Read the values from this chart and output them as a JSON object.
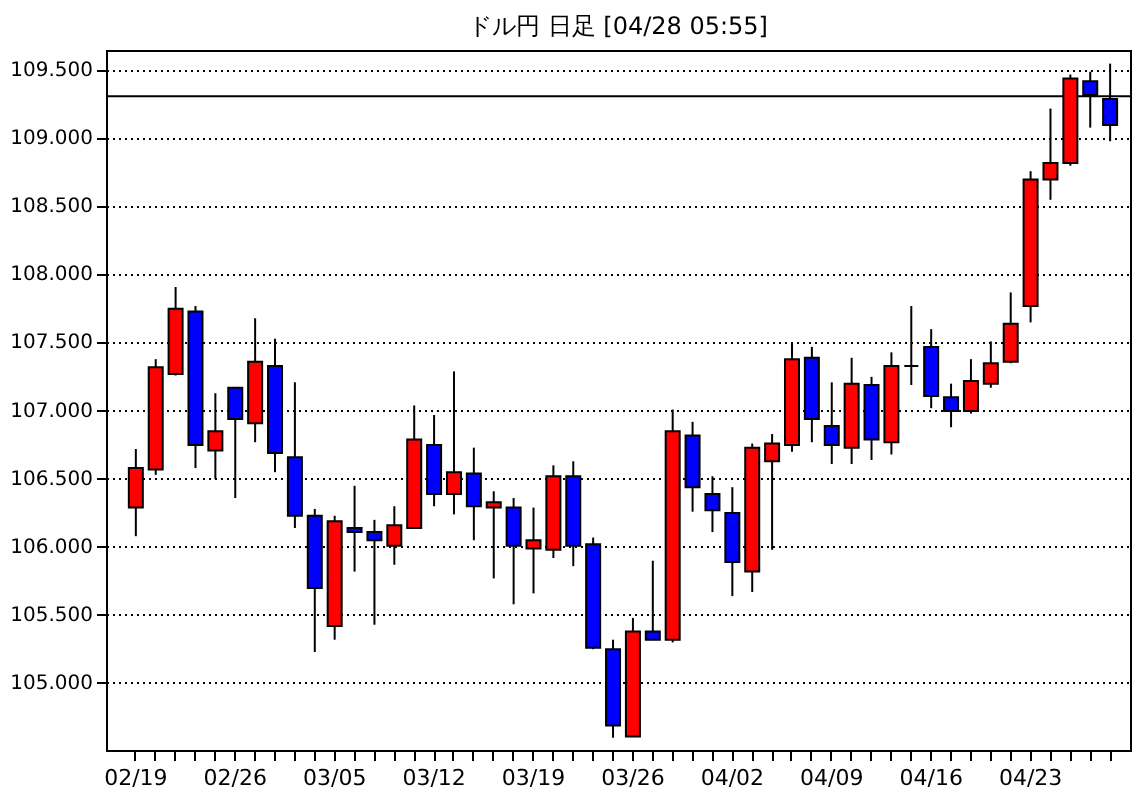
{
  "chart_data": {
    "type": "candlestick",
    "title": "ドル円 日足 [04/28 05:55]",
    "categories": [
      "02/19",
      null,
      null,
      null,
      null,
      "02/26",
      null,
      null,
      null,
      null,
      "03/05",
      null,
      null,
      null,
      null,
      "03/12",
      null,
      null,
      null,
      null,
      "03/19",
      null,
      null,
      null,
      null,
      "03/26",
      null,
      null,
      null,
      null,
      "04/02",
      null,
      null,
      null,
      null,
      "04/09",
      null,
      null,
      null,
      null,
      "04/16",
      null,
      null,
      null,
      null,
      "04/23",
      null,
      null,
      null,
      null
    ],
    "ohlc": [
      [
        106.28,
        106.71,
        106.07,
        106.57
      ],
      [
        106.56,
        107.37,
        106.52,
        107.31
      ],
      [
        107.26,
        107.9,
        107.25,
        107.74
      ],
      [
        107.72,
        107.76,
        106.57,
        106.74
      ],
      [
        106.7,
        107.12,
        106.49,
        106.84
      ],
      [
        107.16,
        107.16,
        106.35,
        106.93
      ],
      [
        106.9,
        107.67,
        106.76,
        107.35
      ],
      [
        107.32,
        107.52,
        106.54,
        106.68
      ],
      [
        106.65,
        107.2,
        106.13,
        106.22
      ],
      [
        106.22,
        106.27,
        105.22,
        105.69
      ],
      [
        105.41,
        106.22,
        105.31,
        106.18
      ],
      [
        106.13,
        106.44,
        105.81,
        106.1
      ],
      [
        106.1,
        106.19,
        105.42,
        106.04
      ],
      [
        106.0,
        106.29,
        105.86,
        106.15
      ],
      [
        106.13,
        107.03,
        106.13,
        106.78
      ],
      [
        106.74,
        106.96,
        106.29,
        106.38
      ],
      [
        106.38,
        107.28,
        106.23,
        106.54
      ],
      [
        106.53,
        106.72,
        106.04,
        106.29
      ],
      [
        106.28,
        106.4,
        105.76,
        106.32
      ],
      [
        106.28,
        106.35,
        105.57,
        106.0
      ],
      [
        105.98,
        106.28,
        105.65,
        106.04
      ],
      [
        105.97,
        106.59,
        105.91,
        106.51
      ],
      [
        106.51,
        106.62,
        105.85,
        106.0
      ],
      [
        106.01,
        106.06,
        105.24,
        105.25
      ],
      [
        105.24,
        105.31,
        104.59,
        104.68
      ],
      [
        104.6,
        105.47,
        104.6,
        105.37
      ],
      [
        105.37,
        105.89,
        105.31,
        105.31
      ],
      [
        105.31,
        107.0,
        105.29,
        106.84
      ],
      [
        106.81,
        106.91,
        106.25,
        106.43
      ],
      [
        106.38,
        106.51,
        106.1,
        106.26
      ],
      [
        106.24,
        106.43,
        105.63,
        105.88
      ],
      [
        105.81,
        106.75,
        105.66,
        106.72
      ],
      [
        106.62,
        106.82,
        105.97,
        106.75
      ],
      [
        106.74,
        107.49,
        106.69,
        107.37
      ],
      [
        107.38,
        107.46,
        106.76,
        106.93
      ],
      [
        106.88,
        107.2,
        106.6,
        106.74
      ],
      [
        106.72,
        107.38,
        106.6,
        107.19
      ],
      [
        107.18,
        107.24,
        106.63,
        106.78
      ],
      [
        106.76,
        107.42,
        106.67,
        107.32
      ],
      [
        107.32,
        107.76,
        107.18,
        107.32
      ],
      [
        107.46,
        107.59,
        107.01,
        107.1
      ],
      [
        107.09,
        107.19,
        106.87,
        106.99
      ],
      [
        106.99,
        107.37,
        106.97,
        107.21
      ],
      [
        107.19,
        107.5,
        107.16,
        107.34
      ],
      [
        107.35,
        107.86,
        107.34,
        107.63
      ],
      [
        107.76,
        108.75,
        107.64,
        108.69
      ],
      [
        108.69,
        109.21,
        108.54,
        108.81
      ],
      [
        108.81,
        109.46,
        108.79,
        109.43
      ],
      [
        109.41,
        109.48,
        109.07,
        109.31
      ],
      [
        109.28,
        109.54,
        108.97,
        109.09
      ]
    ],
    "colors": [
      "#ff0000",
      "#ff0000",
      "#ff0000",
      "#0000ff",
      "#ff0000",
      "#0000ff",
      "#ff0000",
      "#0000ff",
      "#0000ff",
      "#0000ff",
      "#ff0000",
      "#0000ff",
      "#0000ff",
      "#ff0000",
      "#ff0000",
      "#0000ff",
      "#ff0000",
      "#0000ff",
      "#ff0000",
      "#0000ff",
      "#ff0000",
      "#ff0000",
      "#0000ff",
      "#0000ff",
      "#0000ff",
      "#ff0000",
      "#0000ff",
      "#ff0000",
      "#0000ff",
      "#0000ff",
      "#0000ff",
      "#ff0000",
      "#ff0000",
      "#ff0000",
      "#0000ff",
      "#0000ff",
      "#ff0000",
      "#0000ff",
      "#ff0000",
      "#000000",
      "#0000ff",
      "#0000ff",
      "#ff0000",
      "#ff0000",
      "#ff0000",
      "#ff0000",
      "#ff0000",
      "#ff0000",
      "#0000ff",
      "#0000ff"
    ],
    "ylim": [
      104.5,
      109.64
    ],
    "yticks": [
      {
        "value": 105,
        "label": "105.000"
      },
      {
        "value": 105.5,
        "label": "105.500"
      },
      {
        "value": 106,
        "label": "106.000"
      },
      {
        "value": 106.5,
        "label": "106.500"
      },
      {
        "value": 107,
        "label": "107.000"
      },
      {
        "value": 107.5,
        "label": "107.500"
      },
      {
        "value": 108,
        "label": "108.000"
      },
      {
        "value": 108.5,
        "label": "108.500"
      },
      {
        "value": 109,
        "label": "109.000"
      },
      {
        "value": 109.5,
        "label": "109.500"
      }
    ],
    "grid": "y",
    "ref_lines": [
      {
        "axis": "y",
        "value": 109.3,
        "color": "#000000"
      }
    ]
  }
}
